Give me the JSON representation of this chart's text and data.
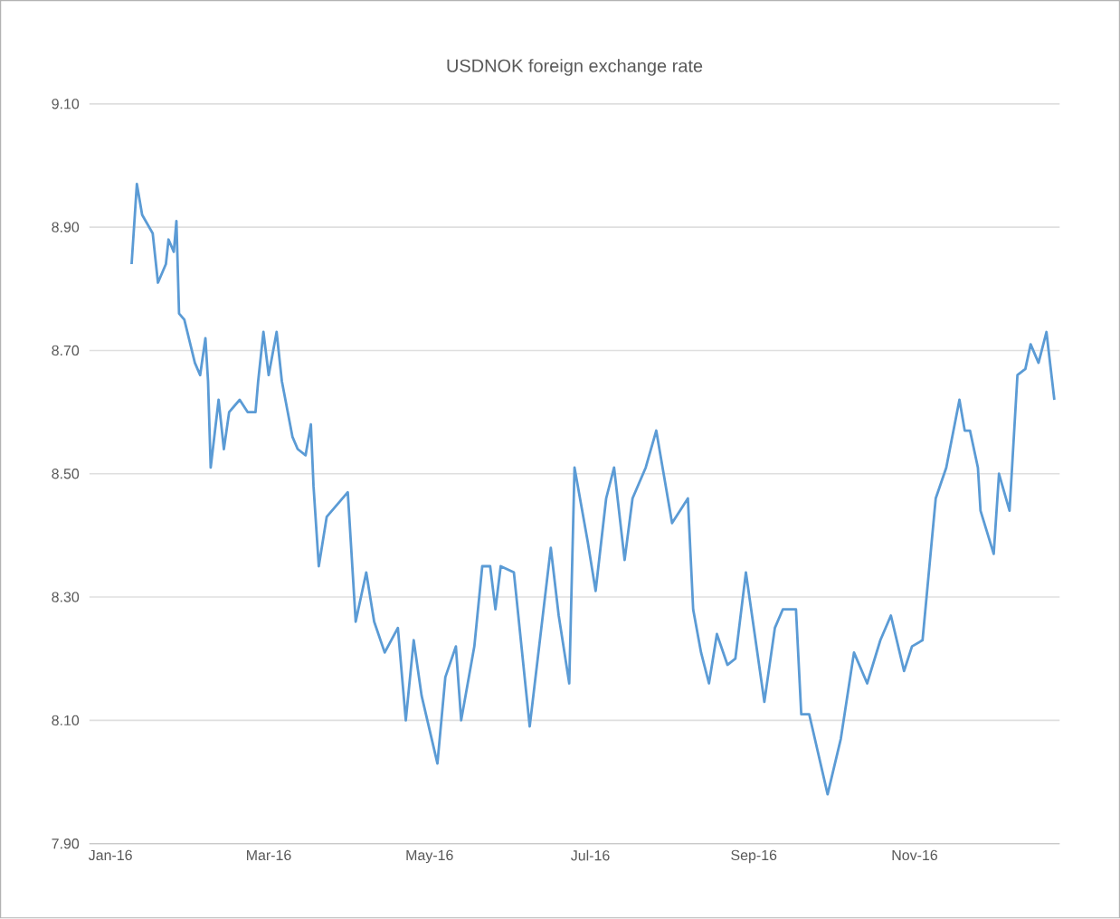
{
  "chart_data": {
    "type": "line",
    "title": "USDNOK foreign exchange rate",
    "x": [
      "2016-01-09",
      "2016-01-11",
      "2016-01-13",
      "2016-01-17",
      "2016-01-19",
      "2016-01-22",
      "2016-01-23",
      "2016-01-25",
      "2016-01-26",
      "2016-01-27",
      "2016-01-29",
      "2016-02-02",
      "2016-02-04",
      "2016-02-06",
      "2016-02-07",
      "2016-02-08",
      "2016-02-11",
      "2016-02-13",
      "2016-02-15",
      "2016-02-19",
      "2016-02-22",
      "2016-02-25",
      "2016-02-26",
      "2016-02-28",
      "2016-03-01",
      "2016-03-04",
      "2016-03-06",
      "2016-03-10",
      "2016-03-12",
      "2016-03-15",
      "2016-03-17",
      "2016-03-18",
      "2016-03-20",
      "2016-03-23",
      "2016-03-31",
      "2016-04-03",
      "2016-04-07",
      "2016-04-10",
      "2016-04-14",
      "2016-04-19",
      "2016-04-22",
      "2016-04-25",
      "2016-04-28",
      "2016-05-04",
      "2016-05-07",
      "2016-05-11",
      "2016-05-13",
      "2016-05-18",
      "2016-05-21",
      "2016-05-24",
      "2016-05-26",
      "2016-05-28",
      "2016-06-02",
      "2016-06-08",
      "2016-06-16",
      "2016-06-19",
      "2016-06-23",
      "2016-06-25",
      "2016-06-30",
      "2016-07-03",
      "2016-07-07",
      "2016-07-10",
      "2016-07-14",
      "2016-07-17",
      "2016-07-22",
      "2016-07-26",
      "2016-08-01",
      "2016-08-07",
      "2016-08-09",
      "2016-08-12",
      "2016-08-15",
      "2016-08-18",
      "2016-08-22",
      "2016-08-25",
      "2016-08-29",
      "2016-09-05",
      "2016-09-09",
      "2016-09-12",
      "2016-09-17",
      "2016-09-19",
      "2016-09-22",
      "2016-09-29",
      "2016-10-04",
      "2016-10-09",
      "2016-10-14",
      "2016-10-19",
      "2016-10-23",
      "2016-10-28",
      "2016-10-31",
      "2016-11-04",
      "2016-11-09",
      "2016-11-13",
      "2016-11-18",
      "2016-11-20",
      "2016-11-22",
      "2016-11-25",
      "2016-11-26",
      "2016-12-01",
      "2016-12-03",
      "2016-12-07",
      "2016-12-10",
      "2016-12-13",
      "2016-12-15",
      "2016-12-18",
      "2016-12-21",
      "2016-12-24"
    ],
    "series": [
      {
        "color": "#5b9bd5",
        "values": [
          8.84,
          8.97,
          8.92,
          8.89,
          8.81,
          8.84,
          8.88,
          8.86,
          8.91,
          8.76,
          8.75,
          8.68,
          8.66,
          8.72,
          8.65,
          8.51,
          8.62,
          8.54,
          8.6,
          8.62,
          8.6,
          8.6,
          8.65,
          8.73,
          8.66,
          8.73,
          8.65,
          8.56,
          8.54,
          8.53,
          8.58,
          8.48,
          8.35,
          8.43,
          8.47,
          8.26,
          8.34,
          8.26,
          8.21,
          8.25,
          8.1,
          8.23,
          8.14,
          8.03,
          8.17,
          8.22,
          8.1,
          8.22,
          8.35,
          8.35,
          8.28,
          8.35,
          8.34,
          8.09,
          8.38,
          8.27,
          8.16,
          8.51,
          8.39,
          8.31,
          8.46,
          8.51,
          8.36,
          8.46,
          8.51,
          8.57,
          8.42,
          8.46,
          8.28,
          8.21,
          8.16,
          8.24,
          8.19,
          8.2,
          8.34,
          8.13,
          8.25,
          8.28,
          8.28,
          8.11,
          8.11,
          7.98,
          8.07,
          8.21,
          8.16,
          8.23,
          8.27,
          8.18,
          8.22,
          8.23,
          8.46,
          8.51,
          8.62,
          8.57,
          8.57,
          8.51,
          8.44,
          8.37,
          8.5,
          8.44,
          8.66,
          8.67,
          8.71,
          8.68,
          8.73,
          8.62
        ]
      }
    ],
    "xlim": [
      "2015-12-24",
      "2016-12-26"
    ],
    "xticks": [
      {
        "value": "2016-01-01",
        "label": "Jan-16"
      },
      {
        "value": "2016-03-01",
        "label": "Mar-16"
      },
      {
        "value": "2016-05-01",
        "label": "May-16"
      },
      {
        "value": "2016-07-01",
        "label": "Jul-16"
      },
      {
        "value": "2016-09-01",
        "label": "Sep-16"
      },
      {
        "value": "2016-11-01",
        "label": "Nov-16"
      }
    ],
    "ylim": [
      7.9,
      9.1
    ],
    "yticks": [
      {
        "value": 7.9,
        "label": "7.90"
      },
      {
        "value": 8.1,
        "label": "8.10"
      },
      {
        "value": 8.3,
        "label": "8.30"
      },
      {
        "value": 8.5,
        "label": "8.50"
      },
      {
        "value": 8.7,
        "label": "8.70"
      },
      {
        "value": 8.9,
        "label": "8.90"
      },
      {
        "value": 9.1,
        "label": "9.10"
      }
    ],
    "grid": "y",
    "marker": "none",
    "line_style": "solid"
  }
}
